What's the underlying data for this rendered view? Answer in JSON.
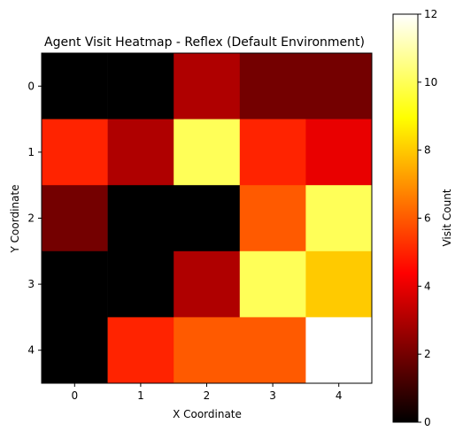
{
  "chart_data": {
    "type": "heatmap",
    "title": "Agent Visit Heatmap - Reflex (Default Environment)",
    "xlabel": "X Coordinate",
    "ylabel": "Y Coordinate",
    "x_ticks": [
      "0",
      "1",
      "2",
      "3",
      "4"
    ],
    "y_ticks": [
      "0",
      "1",
      "2",
      "3",
      "4"
    ],
    "values": [
      [
        0,
        0,
        3,
        2,
        2
      ],
      [
        5,
        3,
        10,
        5,
        4
      ],
      [
        2,
        0,
        0,
        6,
        10
      ],
      [
        0,
        0,
        3,
        10,
        8
      ],
      [
        0,
        5,
        6,
        6,
        12
      ]
    ],
    "colormap": "hot",
    "colorbar": {
      "label": "Visit Count",
      "range": [
        0,
        12
      ],
      "ticks": [
        "0",
        "2",
        "4",
        "6",
        "8",
        "10",
        "12"
      ]
    },
    "grid": false
  }
}
